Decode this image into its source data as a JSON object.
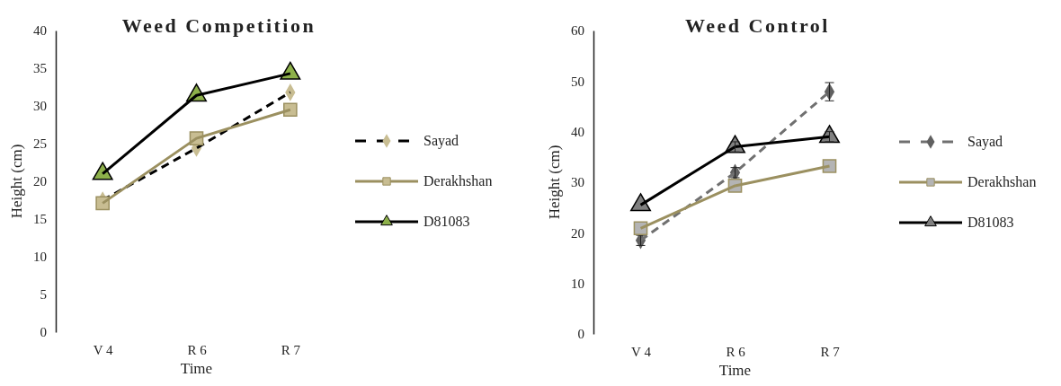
{
  "chart_data": [
    {
      "type": "line",
      "title": "Weed Competition",
      "xlabel": "Time",
      "ylabel": "Height (cm)",
      "categories": [
        "V 4",
        "R 6",
        "R 7"
      ],
      "ylim": [
        0,
        40
      ],
      "yticks": [
        0,
        5,
        10,
        15,
        20,
        25,
        30,
        35,
        40
      ],
      "grid": false,
      "legend": "right",
      "series": [
        {
          "name": "Sayad",
          "color": "#000000",
          "colors": [
            "#c8bd92",
            "#c8bd92",
            "#c8bd92"
          ],
          "marker": "diamond",
          "line_style": "dashed",
          "values": [
            17.5,
            24.4,
            31.8
          ]
        },
        {
          "name": "Derakhshan",
          "color": "#9b9060",
          "colors": [
            "#c8bd92",
            "#c8bd92",
            "#c8bd92"
          ],
          "marker": "square",
          "line_style": "solid",
          "values": [
            17.1,
            25.7,
            29.5
          ]
        },
        {
          "name": "D81083",
          "color": "#000000",
          "colors": [
            "#8db04a",
            "#8db04a",
            "#8db04a"
          ],
          "marker": "triangle",
          "line_style": "solid",
          "values": [
            21,
            31.4,
            34.3
          ]
        }
      ]
    },
    {
      "type": "line",
      "title": "Weed Control",
      "xlabel": "Time",
      "ylabel": "Height (cm)",
      "categories": [
        "V 4",
        "R 6",
        "R 7"
      ],
      "ylim": [
        0,
        60
      ],
      "yticks": [
        0,
        10,
        20,
        30,
        40,
        50,
        60
      ],
      "grid": false,
      "legend": "right",
      "series": [
        {
          "name": "Sayad",
          "color": "#707070",
          "colors": [
            "#606060",
            "#606060",
            "#606060"
          ],
          "marker": "diamond",
          "line_style": "dashed",
          "values": [
            18.5,
            31.9,
            47.9
          ],
          "errors": [
            1,
            1,
            1.8
          ]
        },
        {
          "name": "Derakhshan",
          "color": "#9b9060",
          "colors": [
            "#b4b4b4",
            "#b4b4b4",
            "#b4b4b4"
          ],
          "marker": "square",
          "line_style": "solid",
          "values": [
            20.9,
            29.3,
            33.2
          ]
        },
        {
          "name": "D81083",
          "color": "#000000",
          "colors": [
            "#808080",
            "#808080",
            "#808080"
          ],
          "marker": "triangle",
          "line_style": "solid",
          "values": [
            25.5,
            37,
            39
          ],
          "errors": [
            null,
            1,
            1
          ]
        }
      ]
    }
  ]
}
